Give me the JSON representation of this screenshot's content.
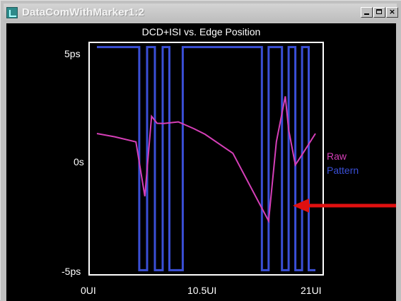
{
  "window": {
    "title": "DataComWithMarker1:2",
    "controls": [
      "minimize",
      "maximize",
      "close"
    ]
  },
  "chart_data": {
    "type": "line",
    "title": "DCD+ISI vs. Edge Position",
    "xlabel": "",
    "ylabel": "",
    "xlim": [
      0,
      21
    ],
    "ylim": [
      -5,
      5
    ],
    "x_ticks": [
      "0UI",
      "10.5UI",
      "21UI"
    ],
    "y_ticks": [
      "5ps",
      "0s",
      "-5ps"
    ],
    "legend": [
      "Raw",
      "Pattern"
    ],
    "colors": {
      "raw": "#d63fb8",
      "pattern": "#3a4fd6",
      "arrow": "#e01010",
      "frame": "#ffffff",
      "text": "#ffffff"
    },
    "series": [
      {
        "name": "Raw",
        "x": [
          0.7,
          2.3,
          4.2,
          5.0,
          5.6,
          6.1,
          6.7,
          8.0,
          9.4,
          10.4,
          12.9,
          16.1,
          16.8,
          17.6,
          17.9,
          18.5,
          19.1,
          20.3
        ],
        "y": [
          1.08,
          0.94,
          0.72,
          -1.62,
          1.82,
          1.52,
          1.51,
          1.58,
          1.29,
          1.05,
          0.23,
          -2.68,
          0.73,
          2.68,
          1.25,
          -0.27,
          0.17,
          1.08
        ]
      },
      {
        "name": "Pattern",
        "x": [
          0.7,
          4.5,
          4.5,
          5.2,
          5.2,
          5.9,
          5.9,
          6.6,
          6.6,
          7.2,
          7.2,
          8.4,
          8.4,
          15.5,
          15.5,
          16.1,
          16.1,
          17.3,
          17.3,
          17.9,
          17.9,
          18.5,
          18.5,
          19.1,
          19.1,
          19.7,
          19.7,
          20.3
        ],
        "y": [
          4.8,
          4.8,
          -4.8,
          -4.8,
          4.8,
          4.8,
          -4.8,
          -4.8,
          4.8,
          4.8,
          -4.8,
          -4.8,
          4.8,
          4.8,
          -4.8,
          -4.8,
          4.8,
          4.8,
          -4.8,
          -4.8,
          4.8,
          4.8,
          -4.8,
          -4.8,
          4.8,
          4.8,
          -4.8,
          -4.8
        ]
      }
    ]
  }
}
